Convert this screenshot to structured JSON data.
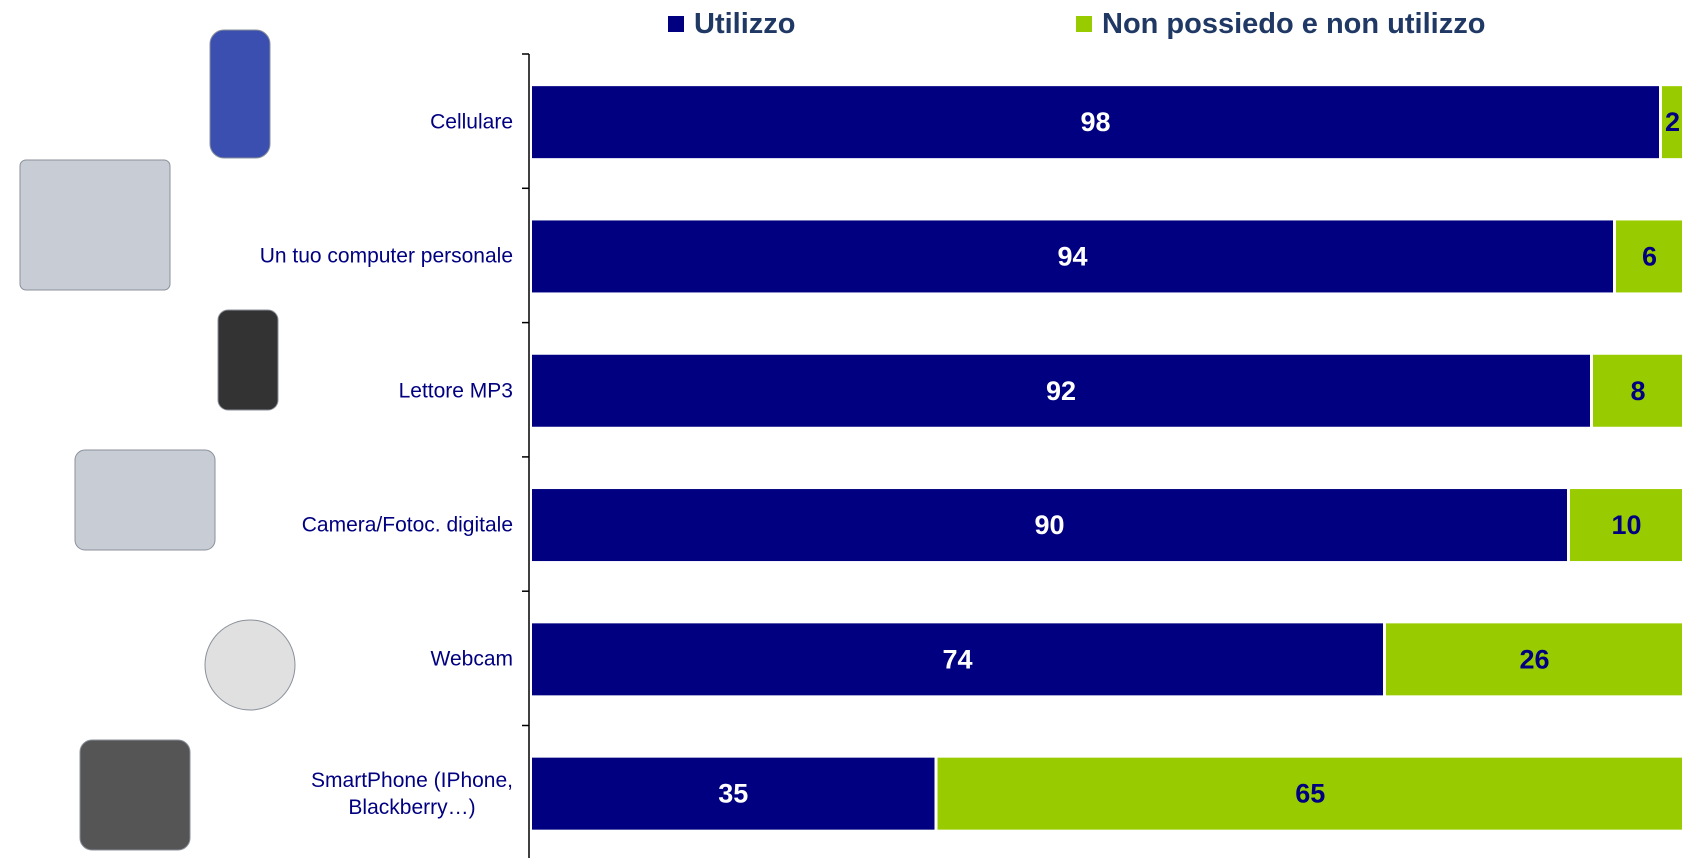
{
  "chart_data": {
    "type": "stacked_barh",
    "categories": [
      "Cellulare",
      "Un tuo computer personale",
      "Lettore MP3",
      "Camera/Fotoc. digitale",
      "Webcam",
      "SmartPhone (IPhone,\nBlackberry…)"
    ],
    "series": [
      {
        "name": "Utilizzo",
        "color": "#000080",
        "values": [
          98,
          94,
          92,
          90,
          74,
          35
        ]
      },
      {
        "name": "Non possiedo e non utilizzo",
        "color": "#99cc00",
        "values": [
          2,
          6,
          8,
          10,
          26,
          65
        ]
      }
    ],
    "xlim": [
      0,
      100
    ]
  }
}
